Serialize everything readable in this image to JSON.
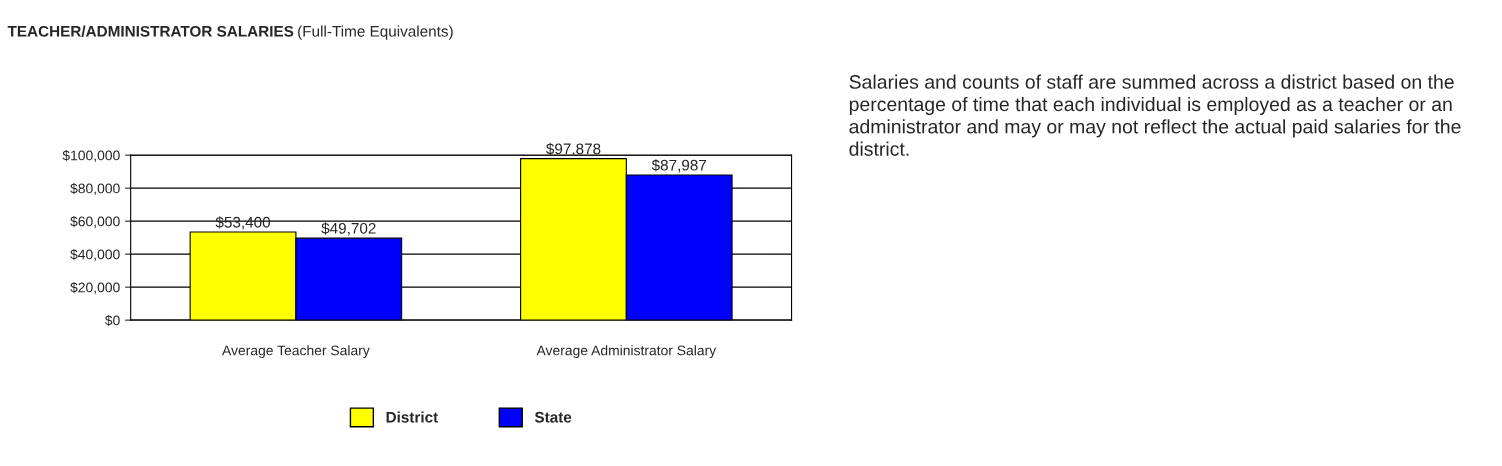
{
  "chart_data": {
    "type": "bar",
    "title": "TEACHER/ADMINISTRATOR SALARIES",
    "subtitle": "(Full-Time Equivalents)",
    "categories": [
      "Average Teacher Salary",
      "Average Administrator Salary"
    ],
    "series": [
      {
        "name": "District",
        "color": "#ffff00",
        "values": [
          53400,
          97878
        ],
        "value_labels": [
          "$53,400",
          "$97,878"
        ]
      },
      {
        "name": "State",
        "color": "#0000ff",
        "values": [
          49702,
          87987
        ],
        "value_labels": [
          "$49,702",
          "$87,987"
        ]
      }
    ],
    "ylim": [
      0,
      100000
    ],
    "yticks": [
      {
        "value": 0,
        "label": "$0"
      },
      {
        "value": 20000,
        "label": "$20,000"
      },
      {
        "value": 40000,
        "label": "$40,000"
      },
      {
        "value": 60000,
        "label": "$60,000"
      },
      {
        "value": 80000,
        "label": "$80,000"
      },
      {
        "value": 100000,
        "label": "$100,000"
      }
    ],
    "grid": "y",
    "legend": "bottom",
    "annotations": [
      "Salaries and counts of staff are summed across a district based on the percentage of time that each individual is employed as a teacher or an administrator and may or may not reflect the actual paid salaries for the district."
    ]
  }
}
